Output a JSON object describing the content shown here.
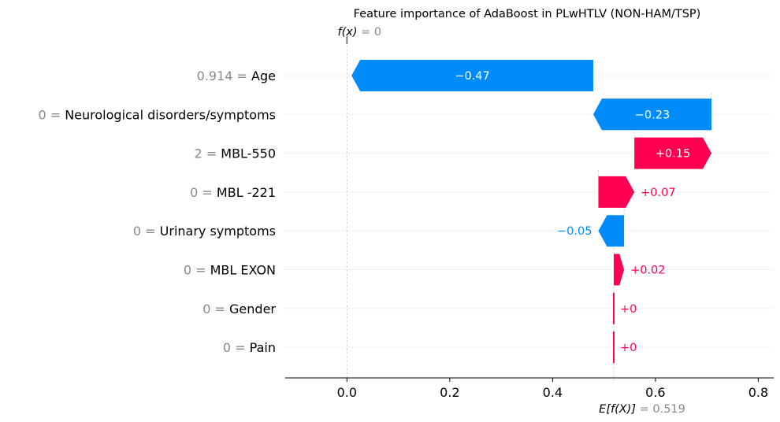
{
  "chart_data": {
    "type": "waterfall",
    "title": "Feature importance of AdaBoost in PLwHTLV (NON-HAM/TSP)",
    "fx_label": "f(x)",
    "fx_value": "0",
    "ex_label": "E[f(X)]",
    "ex_value": "0.519",
    "base_value": 0.519,
    "final_value": 0.0,
    "xlim": [
      -0.12,
      0.83
    ],
    "x_ticks": [
      0.0,
      0.2,
      0.4,
      0.6,
      0.8
    ],
    "x_tick_labels": [
      "0.0",
      "0.2",
      "0.4",
      "0.6",
      "0.8"
    ],
    "colors": {
      "positive": "#ff0051",
      "negative": "#008bfb",
      "value_gray": "#8a8a8a"
    },
    "features": [
      {
        "value": "0.914",
        "name": "Age",
        "contribution": -0.47,
        "label": "−0.47"
      },
      {
        "value": "0",
        "name": "Neurological disorders/symptoms",
        "contribution": -0.23,
        "label": "−0.23"
      },
      {
        "value": "2",
        "name": "MBL-550",
        "contribution": 0.15,
        "label": "+0.15"
      },
      {
        "value": "0",
        "name": "MBL -221",
        "contribution": 0.07,
        "label": "+0.07"
      },
      {
        "value": "0",
        "name": "Urinary symptoms",
        "contribution": -0.05,
        "label": "−0.05"
      },
      {
        "value": "0",
        "name": "MBL EXON",
        "contribution": 0.02,
        "label": "+0.02"
      },
      {
        "value": "0",
        "name": "Gender",
        "contribution": 0.0,
        "label": "+0"
      },
      {
        "value": "0",
        "name": "Pain",
        "contribution": 0.0,
        "label": "+0"
      }
    ]
  }
}
